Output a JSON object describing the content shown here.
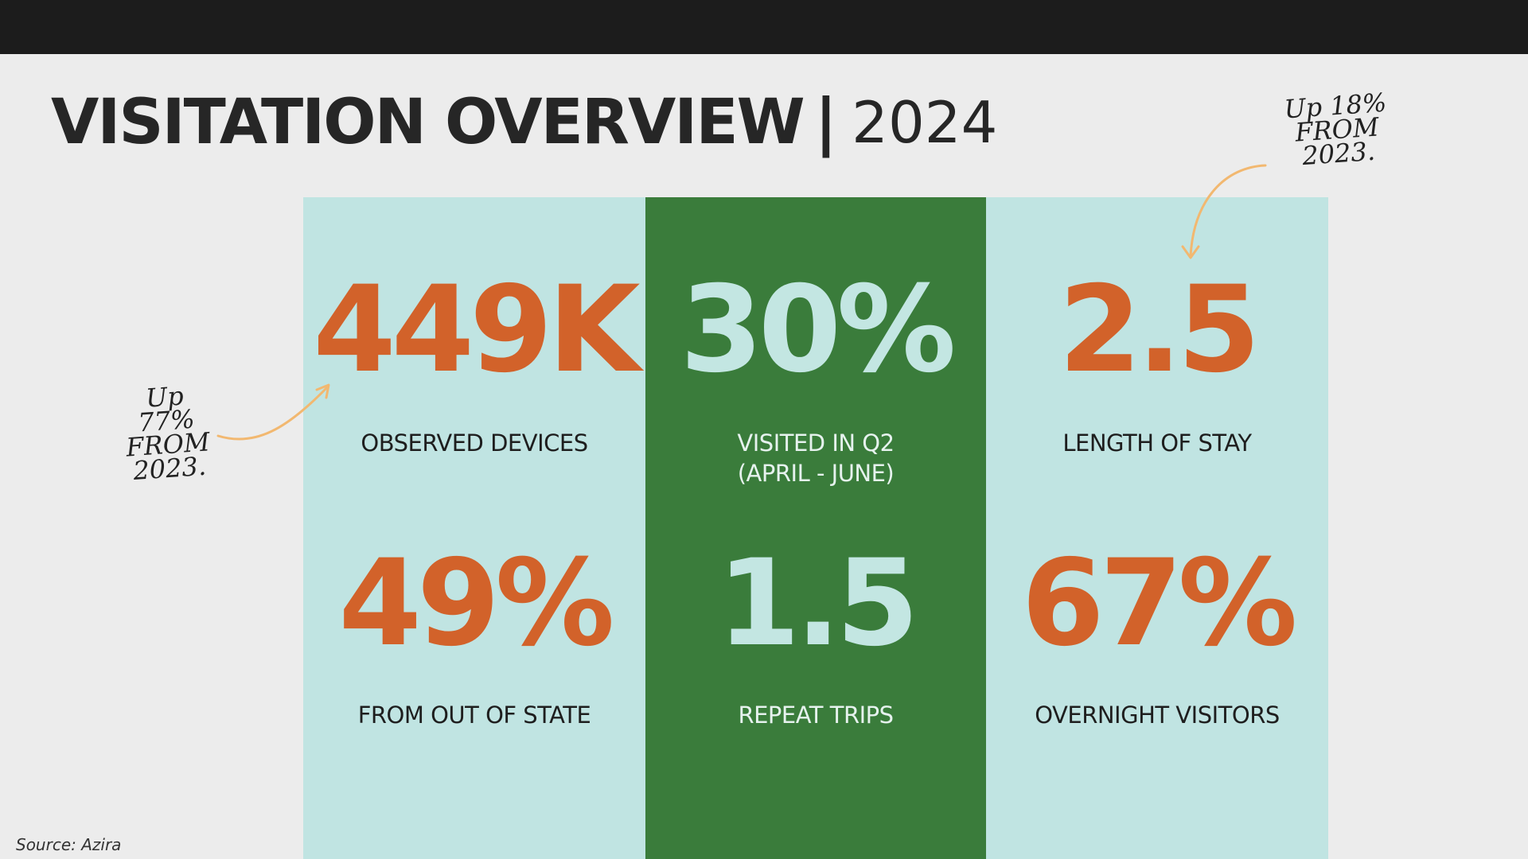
{
  "title": {
    "main": "VISITATION OVERVIEW",
    "separator": "|",
    "year": "2024"
  },
  "stats": {
    "observed_devices": {
      "value": "449K",
      "label": "OBSERVED DEVICES"
    },
    "visited_q2": {
      "value": "30%",
      "label": "VISITED IN Q2\n(APRIL - JUNE)"
    },
    "length_of_stay": {
      "value": "2.5",
      "label": "LENGTH OF STAY"
    },
    "out_of_state": {
      "value": "49%",
      "label": "FROM OUT OF STATE"
    },
    "repeat_trips": {
      "value": "1.5",
      "label": "REPEAT TRIPS"
    },
    "overnight_visitors": {
      "value": "67%",
      "label": "OVERNIGHT VISITORS"
    }
  },
  "annotations": {
    "devices_note": "Up\n77%\nFROM\n2023.",
    "stay_note": "Up 18%\nFROM\n2023."
  },
  "source": "Source: Azira",
  "colors": {
    "top_bar": "#1c1c1c",
    "background": "#ececec",
    "light_panel": "#c0e4e2",
    "green_panel": "#3a7c3b",
    "orange_value": "#d2622a",
    "arrow": "#f2b870"
  }
}
